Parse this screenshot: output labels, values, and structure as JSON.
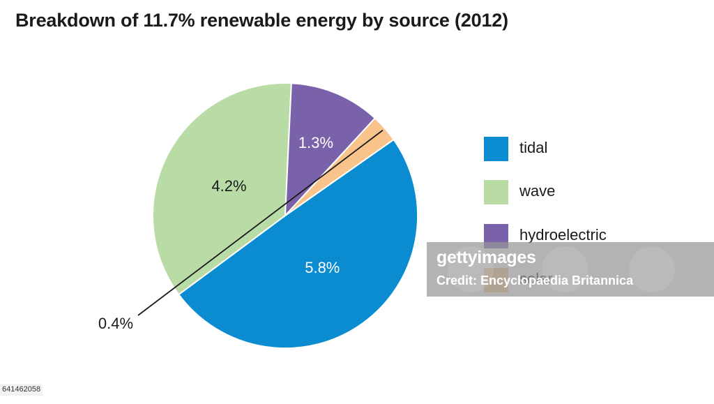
{
  "chart_data": {
    "type": "pie",
    "title": "Breakdown of 11.7% renewable energy by source (2012)",
    "slices": [
      {
        "name": "tidal",
        "value": 5.8,
        "label": "5.8%",
        "color": "#0b8cd1",
        "label_color": "#ffffff"
      },
      {
        "name": "wave",
        "value": 4.2,
        "label": "4.2%",
        "color": "#b9dca7",
        "label_color": "#1a1a1a"
      },
      {
        "name": "hydroelectric",
        "value": 1.3,
        "label": "1.3%",
        "color": "#7a62aa",
        "label_color": "#ffffff"
      },
      {
        "name": "solar",
        "value": 0.4,
        "label": "0.4%",
        "color": "#f8c48c",
        "label_color": "#1a1a1a"
      }
    ],
    "legend_position": "right"
  },
  "legend": [
    {
      "label": "tidal",
      "color": "#0b8cd1"
    },
    {
      "label": "wave",
      "color": "#b9dca7"
    },
    {
      "label": "hydroelectric",
      "color": "#7a62aa"
    },
    {
      "label": "solar",
      "color": "#f8c48c"
    }
  ],
  "watermark": {
    "logo": "gettyimages",
    "credit": "Credit: Encyclopaedia Britannica"
  },
  "image_id": "641462058"
}
